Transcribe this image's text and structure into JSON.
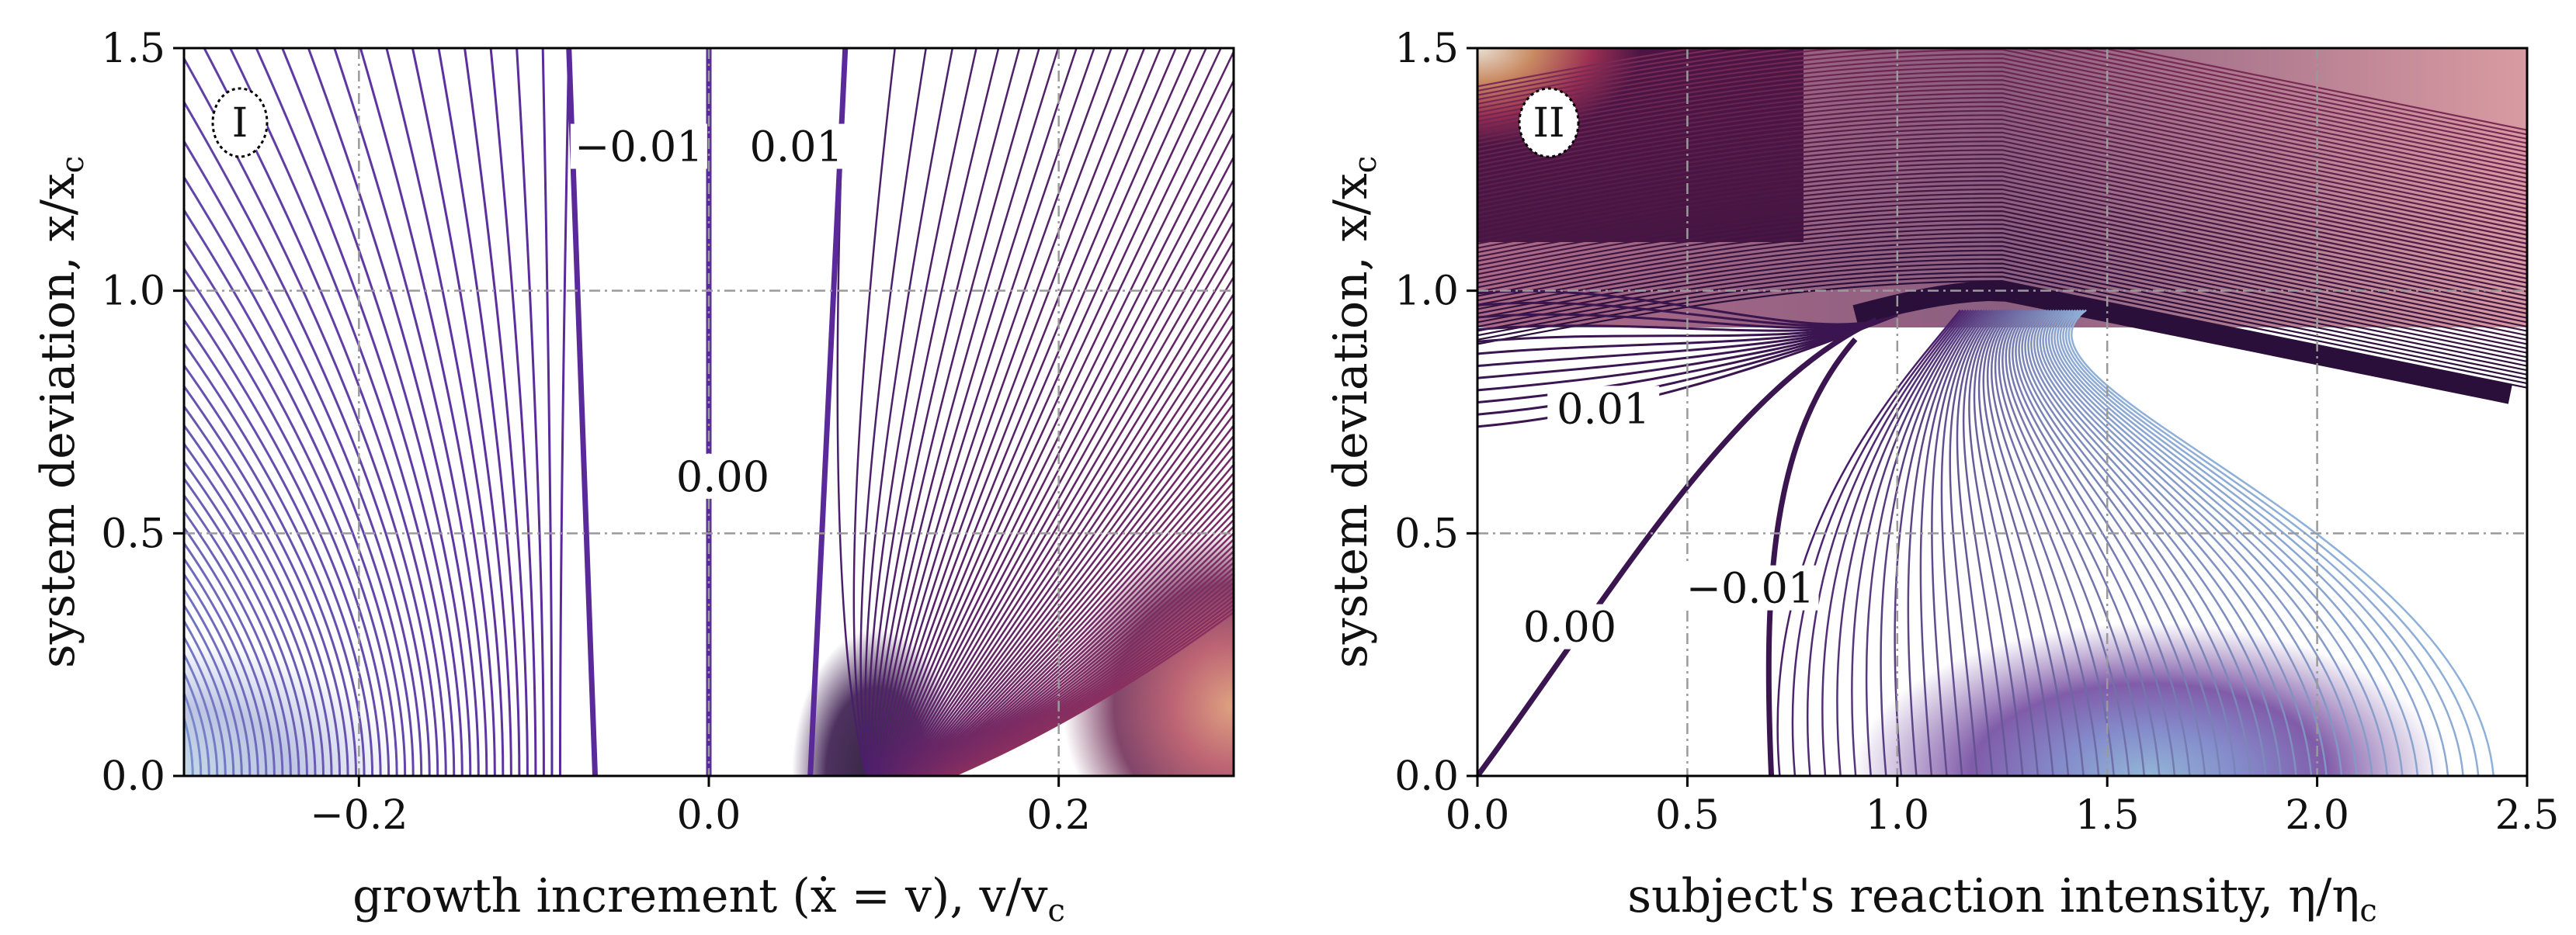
{
  "chart_data": [
    {
      "type": "contour",
      "panel_label": "I",
      "xlabel": "growth increment  (ẋ = v),  v/v",
      "xlabel_sub": "c",
      "ylabel": "system deviation,  x/x",
      "ylabel_sub": "c",
      "xlim": [
        -0.3,
        0.3
      ],
      "ylim": [
        0.0,
        1.5
      ],
      "xticks": [
        -0.2,
        0.0,
        0.2
      ],
      "xtick_labels": [
        "−0.2",
        "0.0",
        "0.2"
      ],
      "yticks": [
        0.0,
        0.5,
        1.0,
        1.5
      ],
      "ytick_labels": [
        "0.0",
        "0.5",
        "1.0",
        "1.5"
      ],
      "grid": true,
      "contour_labels": [
        {
          "text": "−0.01",
          "x": -0.04,
          "y": 1.28
        },
        {
          "text": "0.01",
          "x": 0.05,
          "y": 1.28
        },
        {
          "text": "0.00",
          "x": 0.008,
          "y": 0.6
        }
      ],
      "key_levels": [
        {
          "level": 0.0,
          "x_at_bottom": 0.0,
          "x_at_top": 0.0
        },
        {
          "level": -0.01,
          "x_at_bottom": -0.065,
          "x_at_top": -0.08
        },
        {
          "level": 0.01,
          "x_at_bottom": 0.058,
          "x_at_top": 0.078
        }
      ],
      "colormap": "twilight_shifted"
    },
    {
      "type": "contour",
      "panel_label": "II",
      "xlabel": "subject's reaction intensity, η/η",
      "xlabel_sub": "c",
      "ylabel": "system deviation,  x/x",
      "ylabel_sub": "c",
      "xlim": [
        0.0,
        2.5
      ],
      "ylim": [
        0.0,
        1.5
      ],
      "xticks": [
        0.0,
        0.5,
        1.0,
        1.5,
        2.0,
        2.5
      ],
      "xtick_labels": [
        "0.0",
        "0.5",
        "1.0",
        "1.5",
        "2.0",
        "2.5"
      ],
      "yticks": [
        0.0,
        0.5,
        1.0,
        1.5
      ],
      "ytick_labels": [
        "0.0",
        "0.5",
        "1.0",
        "1.5"
      ],
      "grid": true,
      "contour_labels": [
        {
          "text": "0.01",
          "x": 0.3,
          "y": 0.74
        },
        {
          "text": "−0.01",
          "x": 0.65,
          "y": 0.37
        },
        {
          "text": "0.00",
          "x": 0.22,
          "y": 0.29
        }
      ],
      "key_levels": [
        {
          "level": 0.0,
          "description": "from (0,0) rising to about (0.9, 0.95)"
        },
        {
          "level": -0.01,
          "description": "near vertical from (0.7,0) to about (0.7,0.8)"
        },
        {
          "level": 0.01,
          "description": "from (0,0.72) rising toward (1.0,0.95)"
        },
        {
          "level": "separatrix",
          "description": "thick band peaking near (1.25, 1.0), descending to (2.5, 0.78)"
        }
      ],
      "colormap": "twilight_shifted"
    }
  ]
}
